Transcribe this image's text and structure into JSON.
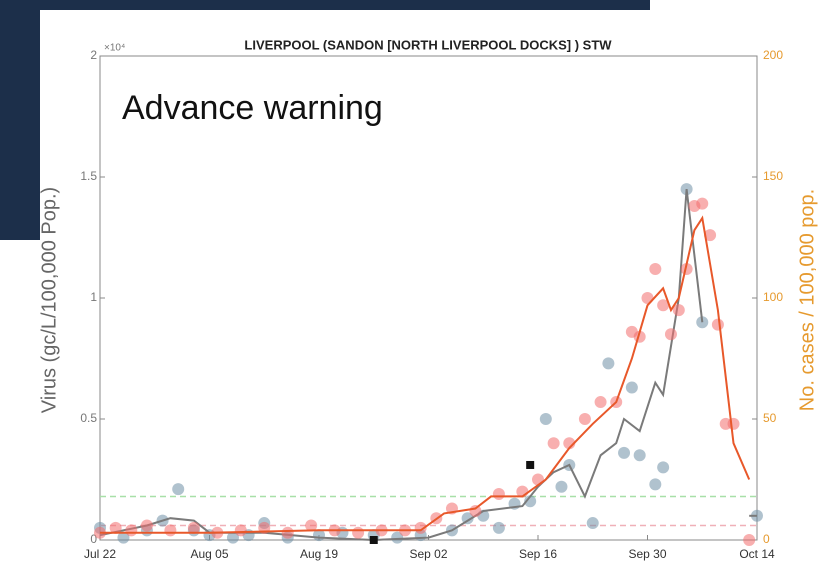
{
  "chart_data": {
    "type": "line",
    "title": "LIVERPOOL (SANDON [NORTH LIVERPOOL DOCKS] ) STW",
    "annotation": "Advance warning",
    "y_label": "Virus (gc/L/100,000 Pop.)",
    "y_multiplier": "×10⁴",
    "y2_label": "No. cases / 100,000 pop.",
    "xlim": [
      "Jul 22",
      "Oct 14"
    ],
    "xticks": [
      "Jul 22",
      "Aug 05",
      "Aug 19",
      "Sep 02",
      "Sep 16",
      "Sep 30",
      "Oct 14"
    ],
    "ylim": [
      0,
      2
    ],
    "yticks": [
      0,
      0.5,
      1,
      1.5,
      2
    ],
    "y2lim": [
      0,
      200
    ],
    "y2ticks": [
      0,
      50,
      100,
      150,
      200
    ],
    "reference_lines": [
      {
        "value": 0.18,
        "color": "#a8e0a8"
      },
      {
        "value": 0.06,
        "color": "#f0b0b8"
      }
    ],
    "series": [
      {
        "style": "scatter",
        "color": "#6f8fa6",
        "x": [
          "Jul 22",
          "Jul 25",
          "Jul 28",
          "Jul 30",
          "Aug 01",
          "Aug 03",
          "Aug 05",
          "Aug 08",
          "Aug 10",
          "Aug 12",
          "Aug 15",
          "Aug 19",
          "Aug 22",
          "Aug 26",
          "Aug 29",
          "Sep 01",
          "Sep 05",
          "Sep 07",
          "Sep 09",
          "Sep 11",
          "Sep 13",
          "Sep 15",
          "Sep 17",
          "Sep 19",
          "Sep 20",
          "Sep 23",
          "Sep 25",
          "Sep 27",
          "Sep 28",
          "Sep 29",
          "Oct 01",
          "Oct 02",
          "Oct 05",
          "Oct 07",
          "Oct 14"
        ],
        "values": [
          0.05,
          0.01,
          0.04,
          0.08,
          0.21,
          0.04,
          0.02,
          0.01,
          0.02,
          0.07,
          0.01,
          0.02,
          0.03,
          0.02,
          0.01,
          0.02,
          0.04,
          0.09,
          0.1,
          0.05,
          0.15,
          0.16,
          0.5,
          0.22,
          0.31,
          0.07,
          0.73,
          0.36,
          0.63,
          0.35,
          0.23,
          0.3,
          1.45,
          0.9,
          0.1
        ]
      },
      {
        "style": "line",
        "color": "#7a7a7a",
        "x": [
          "Jul 22",
          "Jul 28",
          "Jul 31",
          "Aug 03",
          "Aug 05",
          "Aug 12",
          "Aug 19",
          "Aug 26",
          "Sep 02",
          "Sep 05",
          "Sep 09",
          "Sep 14",
          "Sep 16",
          "Sep 18",
          "Sep 20",
          "Sep 22",
          "Sep 24",
          "Sep 26",
          "Sep 27",
          "Sep 29",
          "Oct 01",
          "Oct 02",
          "Oct 04",
          "Oct 05",
          "Oct 07",
          "Oct 10",
          "Oct 13",
          "Oct 14"
        ],
        "values": [
          0.02,
          0.06,
          0.09,
          0.08,
          0.03,
          0.03,
          0.01,
          0,
          0.01,
          0.04,
          0.12,
          0.14,
          0.22,
          0.28,
          0.31,
          0.18,
          0.35,
          0.4,
          0.5,
          0.45,
          0.65,
          0.6,
          1.0,
          1.45,
          0.9,
          null,
          0.1,
          0.1
        ]
      },
      {
        "style": "scatter",
        "color": "#f26d6d",
        "axis": "y2",
        "x": [
          "Jul 22",
          "Jul 24",
          "Jul 26",
          "Jul 28",
          "Jul 31",
          "Aug 03",
          "Aug 06",
          "Aug 09",
          "Aug 12",
          "Aug 15",
          "Aug 18",
          "Aug 21",
          "Aug 24",
          "Aug 27",
          "Aug 30",
          "Sep 01",
          "Sep 03",
          "Sep 05",
          "Sep 08",
          "Sep 11",
          "Sep 14",
          "Sep 16",
          "Sep 18",
          "Sep 20",
          "Sep 22",
          "Sep 24",
          "Sep 26",
          "Sep 28",
          "Sep 29",
          "Sep 30",
          "Oct 01",
          "Oct 02",
          "Oct 03",
          "Oct 04",
          "Oct 05",
          "Oct 06",
          "Oct 07",
          "Oct 08",
          "Oct 09",
          "Oct 10",
          "Oct 11",
          "Oct 13"
        ],
        "values": [
          3,
          5,
          4,
          6,
          4,
          5,
          3,
          4,
          5,
          3,
          6,
          4,
          3,
          4,
          4,
          5,
          9,
          13,
          12,
          19,
          20,
          25,
          40,
          40,
          50,
          57,
          57,
          86,
          84,
          100,
          112,
          97,
          85,
          95,
          112,
          138,
          139,
          126,
          89,
          48,
          48,
          0
        ]
      },
      {
        "style": "line",
        "color": "#e8582a",
        "axis": "y2",
        "x": [
          "Jul 22",
          "Aug 05",
          "Aug 19",
          "Sep 01",
          "Sep 04",
          "Sep 08",
          "Sep 10",
          "Sep 14",
          "Sep 17",
          "Sep 20",
          "Sep 23",
          "Sep 26",
          "Sep 28",
          "Sep 30",
          "Oct 02",
          "Oct 03",
          "Oct 04",
          "Oct 06",
          "Oct 07",
          "Oct 09",
          "Oct 11",
          "Oct 13"
        ],
        "values": [
          3,
          3,
          4,
          4,
          11,
          13,
          18,
          18,
          25,
          38,
          48,
          57,
          75,
          97,
          104,
          95,
          100,
          128,
          133,
          95,
          40,
          25
        ]
      },
      {
        "style": "square",
        "color": "#111111",
        "x": [
          "Aug 26",
          "Sep 15"
        ],
        "values": [
          0,
          0.31
        ]
      }
    ]
  }
}
